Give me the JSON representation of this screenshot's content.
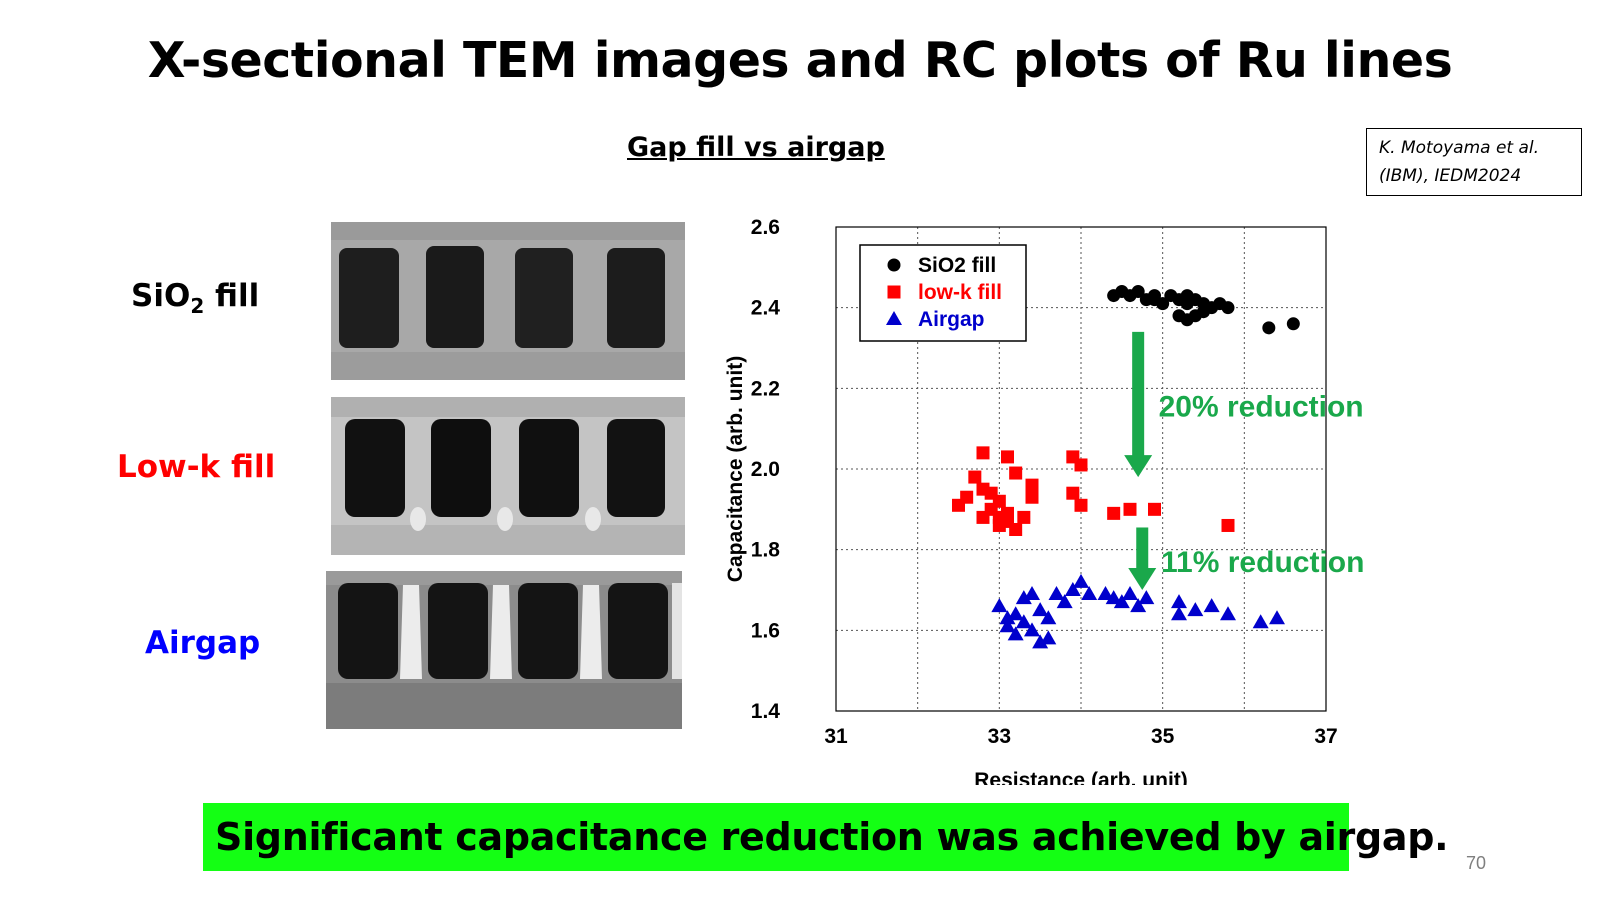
{
  "title": "X-sectional TEM images and RC plots of Ru lines",
  "subtitle": "Gap fill vs airgap",
  "citation": {
    "line1": "K. Motoyama et al.",
    "line2": "(IBM), IEDM2024"
  },
  "rows": [
    {
      "label_main": "SiO",
      "label_sub": "2",
      "label_tail": " fill",
      "color": "#000000"
    },
    {
      "label": "Low-k fill",
      "color": "#ff0000"
    },
    {
      "label": "Airgap",
      "color": "#0000ff"
    }
  ],
  "chart_data": {
    "type": "scatter",
    "xlabel": "Resistance (arb. unit)",
    "ylabel": "Capacitance (arb. unit)",
    "xlim": [
      31,
      37
    ],
    "ylim": [
      1.4,
      2.6
    ],
    "xticks": [
      "31",
      "33",
      "35",
      "37"
    ],
    "yticks": [
      "1.4",
      "1.6",
      "1.8",
      "2.0",
      "2.2",
      "2.4",
      "2.6"
    ],
    "grid": true,
    "legend_position": "top-left",
    "series": [
      {
        "name": "SiO2 fill",
        "color": "#000000",
        "marker": "circle",
        "points": [
          [
            34.4,
            2.43
          ],
          [
            34.5,
            2.44
          ],
          [
            34.6,
            2.43
          ],
          [
            34.7,
            2.44
          ],
          [
            34.8,
            2.42
          ],
          [
            34.9,
            2.43
          ],
          [
            34.9,
            2.42
          ],
          [
            35.0,
            2.41
          ],
          [
            35.1,
            2.43
          ],
          [
            35.2,
            2.42
          ],
          [
            35.3,
            2.41
          ],
          [
            35.3,
            2.43
          ],
          [
            35.4,
            2.42
          ],
          [
            35.5,
            2.41
          ],
          [
            35.6,
            2.4
          ],
          [
            35.7,
            2.41
          ],
          [
            35.2,
            2.38
          ],
          [
            35.3,
            2.37
          ],
          [
            35.4,
            2.38
          ],
          [
            35.5,
            2.39
          ],
          [
            35.8,
            2.4
          ],
          [
            36.3,
            2.35
          ],
          [
            36.6,
            2.36
          ]
        ]
      },
      {
        "name": "low-k fill",
        "color": "#ff0000",
        "marker": "square",
        "points": [
          [
            32.5,
            1.91
          ],
          [
            32.6,
            1.93
          ],
          [
            32.7,
            1.98
          ],
          [
            32.8,
            1.95
          ],
          [
            32.8,
            1.88
          ],
          [
            32.9,
            1.9
          ],
          [
            33.0,
            1.86
          ],
          [
            33.0,
            1.92
          ],
          [
            33.1,
            1.87
          ],
          [
            33.2,
            1.85
          ],
          [
            33.1,
            1.89
          ],
          [
            33.0,
            1.88
          ],
          [
            32.9,
            1.94
          ],
          [
            32.8,
            2.04
          ],
          [
            33.1,
            2.03
          ],
          [
            33.2,
            1.99
          ],
          [
            33.4,
            1.93
          ],
          [
            33.4,
            1.96
          ],
          [
            33.3,
            1.88
          ],
          [
            33.9,
            2.03
          ],
          [
            34.0,
            2.01
          ],
          [
            33.9,
            1.94
          ],
          [
            34.0,
            1.91
          ],
          [
            34.4,
            1.89
          ],
          [
            34.6,
            1.9
          ],
          [
            34.9,
            1.9
          ],
          [
            35.8,
            1.86
          ]
        ]
      },
      {
        "name": "Airgap",
        "color": "#0000cc",
        "marker": "triangle",
        "points": [
          [
            33.0,
            1.66
          ],
          [
            33.1,
            1.63
          ],
          [
            33.1,
            1.61
          ],
          [
            33.2,
            1.64
          ],
          [
            33.2,
            1.59
          ],
          [
            33.3,
            1.68
          ],
          [
            33.3,
            1.62
          ],
          [
            33.4,
            1.69
          ],
          [
            33.4,
            1.6
          ],
          [
            33.5,
            1.65
          ],
          [
            33.5,
            1.57
          ],
          [
            33.6,
            1.63
          ],
          [
            33.6,
            1.58
          ],
          [
            33.7,
            1.69
          ],
          [
            33.8,
            1.67
          ],
          [
            33.9,
            1.7
          ],
          [
            34.0,
            1.72
          ],
          [
            34.1,
            1.69
          ],
          [
            34.3,
            1.69
          ],
          [
            34.4,
            1.68
          ],
          [
            34.5,
            1.67
          ],
          [
            34.6,
            1.69
          ],
          [
            34.7,
            1.66
          ],
          [
            34.8,
            1.68
          ],
          [
            35.2,
            1.67
          ],
          [
            35.2,
            1.64
          ],
          [
            35.4,
            1.65
          ],
          [
            35.6,
            1.66
          ],
          [
            35.8,
            1.64
          ],
          [
            36.2,
            1.62
          ],
          [
            36.4,
            1.63
          ]
        ]
      }
    ],
    "annotations": [
      {
        "text": "20% reduction",
        "color": "#1aa84b"
      },
      {
        "text": "11% reduction",
        "color": "#1aa84b"
      }
    ]
  },
  "banner": {
    "text": "Significant capacitance reduction was achieved by airgap.",
    "color": "#14ff14"
  },
  "page_number": "70"
}
